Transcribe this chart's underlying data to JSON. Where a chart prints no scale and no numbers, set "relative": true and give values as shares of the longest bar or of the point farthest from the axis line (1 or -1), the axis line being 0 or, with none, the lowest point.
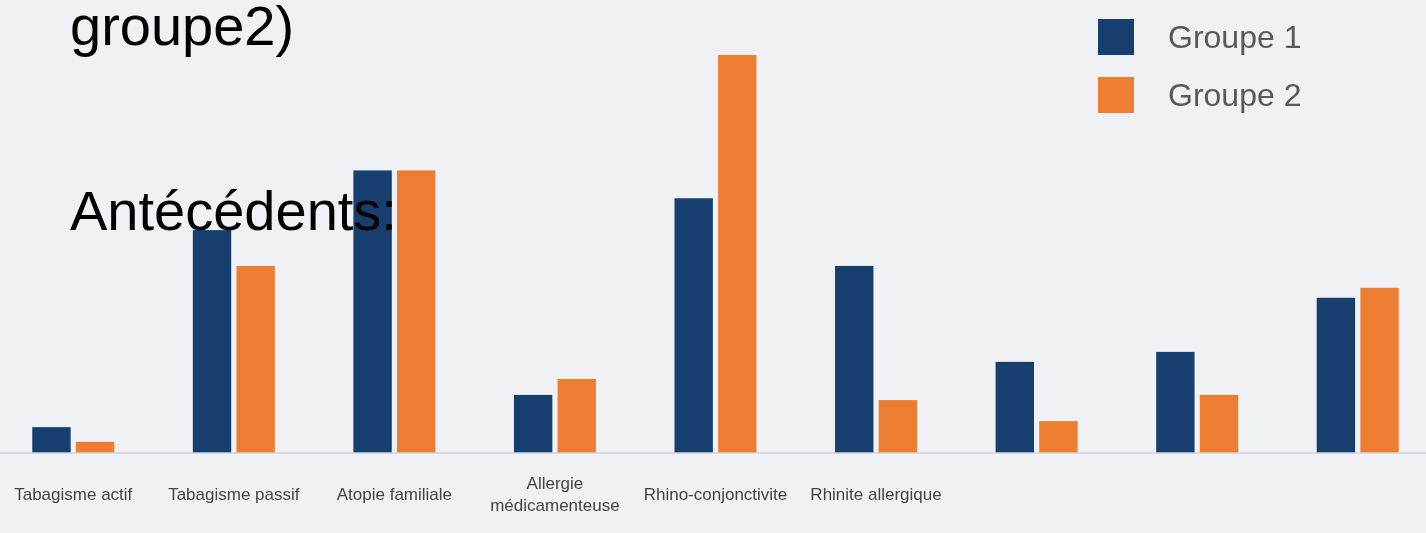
{
  "chart_data": {
    "type": "bar",
    "title": "groupe2)",
    "subtitle": "Antécédents:",
    "relative": true,
    "categories": [
      "Tabagisme actif",
      "Tabagisme passif",
      "Atopie familiale",
      "Allergie médicamenteuse",
      "Rhino-conjonctivite",
      "Rhinite allergique",
      null,
      null,
      null
    ],
    "series": [
      {
        "name": "Groupe 1",
        "color": "#163e6f",
        "values": [
          0.065,
          0.56,
          0.71,
          0.146,
          0.64,
          0.47,
          0.229,
          0.254,
          0.39
        ]
      },
      {
        "name": "Groupe 2",
        "color": "#ed7d31",
        "values": [
          0.028,
          0.47,
          0.71,
          0.186,
          1,
          0.133,
          0.08,
          0.146,
          0.415
        ]
      }
    ],
    "legend": "top right"
  }
}
